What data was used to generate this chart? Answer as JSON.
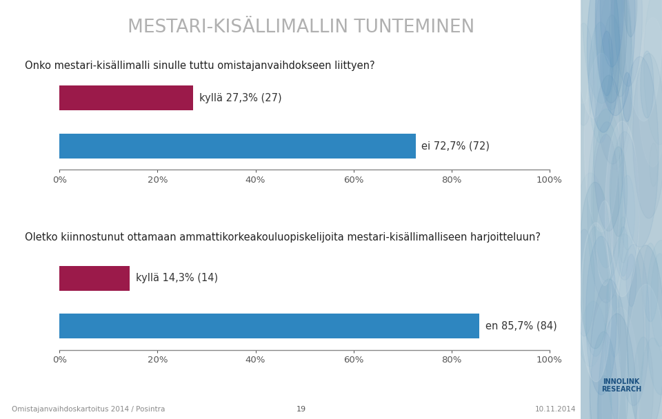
{
  "title": "MESTARI-KISÄLLIMALLIN TUNTEMINEN",
  "title_color": "#b0b0b0",
  "bg_color": "#ffffff",
  "question1": "Onko mestari-kisällimalli sinulle tuttu omistajanvaihdokseen liittyen?",
  "question2": "Oletko kiinnostunut ottamaan ammattikorkeakouluopiskelijoita mestari-kisällimalliseen harjoitteluun?",
  "chart1": {
    "values": [
      27.3,
      72.7
    ],
    "labels": [
      "kyllä 27,3% (27)",
      "ei 72,7% (72)"
    ],
    "colors": [
      "#9b1a4a",
      "#2e86c0"
    ]
  },
  "chart2": {
    "values": [
      14.3,
      85.7
    ],
    "labels": [
      "kyllä 14,3% (14)",
      "en 85,7% (84)"
    ],
    "colors": [
      "#9b1a4a",
      "#2e86c0"
    ]
  },
  "footer_left": "Omistajanvaihdoskartoitus 2014 / Posintra",
  "footer_page": "19",
  "footer_date": "10.11.2014",
  "question_fontsize": 10.5,
  "label_fontsize": 10.5,
  "tick_fontsize": 9.5,
  "bar_height": 0.52,
  "right_panel_color": "#b8cdd8"
}
